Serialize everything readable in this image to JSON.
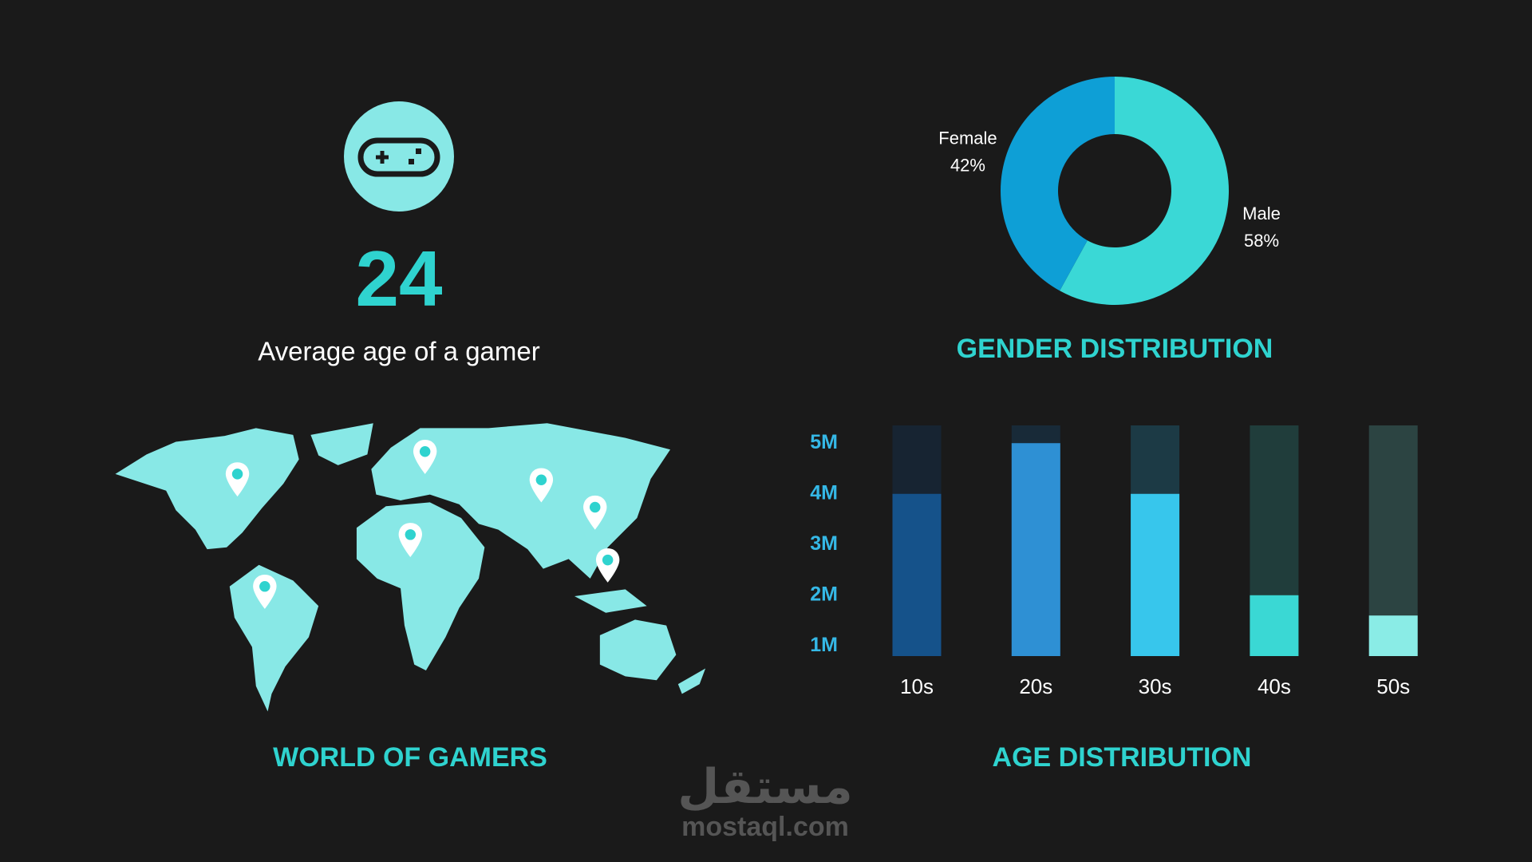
{
  "stat": {
    "value": "24",
    "caption": "Average age of a gamer"
  },
  "map": {
    "title": "WORLD OF GAMERS"
  },
  "watermark": {
    "arabic": "مستقل",
    "site": "mostaql.com"
  },
  "chart_data": [
    {
      "type": "pie",
      "title": "GENDER DISTRIBUTION",
      "categories": [
        "Male",
        "Female"
      ],
      "values": [
        58,
        42
      ],
      "value_labels": [
        "58%",
        "42%"
      ],
      "colors": [
        "#3ad8d6",
        "#0e9fd6"
      ],
      "donut": true
    },
    {
      "type": "bar",
      "title": "AGE DISTRIBUTION",
      "categories": [
        "10s",
        "20s",
        "30s",
        "40s",
        "50s"
      ],
      "values": [
        4000000,
        5000000,
        4000000,
        2000000,
        1600000
      ],
      "colors": [
        "#15528a",
        "#2e90d4",
        "#37c6ec",
        "#3ad8d4",
        "#8aece6"
      ],
      "track_colors": [
        "#172432",
        "#182a38",
        "#1c3a45",
        "#203d3b",
        "#2c4442"
      ],
      "ylim": [
        800000,
        5350000
      ],
      "yticks": [
        {
          "value": 1000000,
          "label": "1M"
        },
        {
          "value": 2000000,
          "label": "2M"
        },
        {
          "value": 3000000,
          "label": "3M"
        },
        {
          "value": 4000000,
          "label": "4M"
        },
        {
          "value": 5000000,
          "label": "5M"
        }
      ]
    }
  ]
}
